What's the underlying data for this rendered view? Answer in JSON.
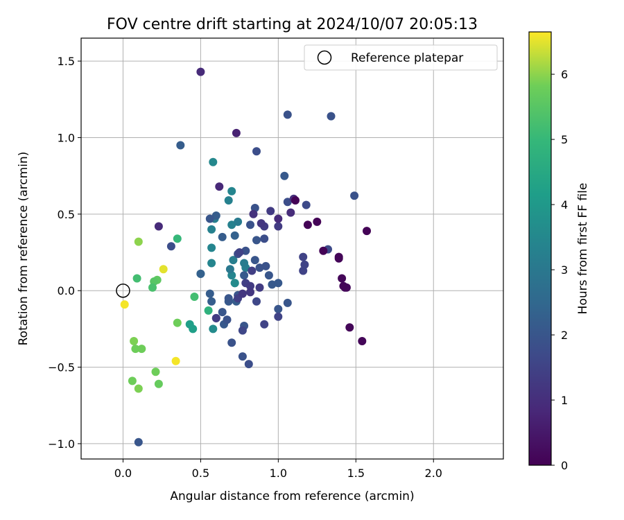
{
  "chart_data": {
    "type": "scatter",
    "title": "FOV centre drift starting at 2024/10/07 20:05:13",
    "xlabel": "Angular distance from reference (arcmin)",
    "ylabel": "Rotation from reference (arcmin)",
    "xlim": [
      -0.27,
      2.45
    ],
    "ylim": [
      -1.1,
      1.65
    ],
    "x_ticks": [
      0.0,
      0.5,
      1.0,
      1.5,
      2.0
    ],
    "x_tick_labels": [
      "0.0",
      "0.5",
      "1.0",
      "1.5",
      "2.0"
    ],
    "y_ticks": [
      -1.0,
      -0.5,
      0.0,
      0.5,
      1.0,
      1.5
    ],
    "y_tick_labels": [
      "−1.0",
      "−0.5",
      "0.0",
      "0.5",
      "1.0",
      "1.5"
    ],
    "grid": true,
    "legend": {
      "placement": "top-right",
      "entries": [
        "Reference platepar"
      ]
    },
    "reference_point": {
      "x": 0.0,
      "y": 0.0
    },
    "colorbar": {
      "label": "Hours from first FF file",
      "colormap": "viridis",
      "range": [
        0,
        6.65
      ],
      "ticks": [
        0,
        1,
        2,
        3,
        4,
        5,
        6
      ],
      "tick_labels": [
        "0",
        "1",
        "2",
        "3",
        "4",
        "5",
        "6"
      ]
    },
    "points": [
      {
        "x": 1.11,
        "y": 0.59,
        "t": 0.05
      },
      {
        "x": 1.19,
        "y": 0.43,
        "t": 0.05
      },
      {
        "x": 1.25,
        "y": 0.45,
        "t": 0.05
      },
      {
        "x": 1.29,
        "y": 0.26,
        "t": 0.05
      },
      {
        "x": 1.39,
        "y": 0.21,
        "t": 0.1
      },
      {
        "x": 1.39,
        "y": 0.22,
        "t": 0.1
      },
      {
        "x": 1.41,
        "y": 0.08,
        "t": 0.1
      },
      {
        "x": 1.42,
        "y": 0.03,
        "t": 0.1
      },
      {
        "x": 1.43,
        "y": 0.02,
        "t": 0.15
      },
      {
        "x": 1.44,
        "y": 0.02,
        "t": 0.15
      },
      {
        "x": 1.57,
        "y": 0.39,
        "t": 0.05
      },
      {
        "x": 1.46,
        "y": -0.24,
        "t": 0.1
      },
      {
        "x": 1.54,
        "y": -0.33,
        "t": 0.1
      },
      {
        "x": 0.73,
        "y": 1.03,
        "t": 0.7
      },
      {
        "x": 0.5,
        "y": 1.43,
        "t": 0.9
      },
      {
        "x": 0.62,
        "y": 0.68,
        "t": 0.85
      },
      {
        "x": 0.23,
        "y": 0.42,
        "t": 0.9
      },
      {
        "x": 1.1,
        "y": 0.6,
        "t": 1.0
      },
      {
        "x": 1.08,
        "y": 0.51,
        "t": 0.95
      },
      {
        "x": 1.0,
        "y": 0.47,
        "t": 0.9
      },
      {
        "x": 0.84,
        "y": 0.5,
        "t": 1.1
      },
      {
        "x": 0.89,
        "y": 0.44,
        "t": 1.2
      },
      {
        "x": 0.91,
        "y": 0.42,
        "t": 1.3
      },
      {
        "x": 1.0,
        "y": 0.42,
        "t": 1.3
      },
      {
        "x": 0.95,
        "y": 0.52,
        "t": 1.3
      },
      {
        "x": 0.75,
        "y": 0.25,
        "t": 1.5
      },
      {
        "x": 0.83,
        "y": 0.13,
        "t": 1.4
      },
      {
        "x": 0.79,
        "y": 0.05,
        "t": 1.4
      },
      {
        "x": 0.82,
        "y": 0.03,
        "t": 1.3
      },
      {
        "x": 0.88,
        "y": 0.02,
        "t": 1.3
      },
      {
        "x": 0.77,
        "y": -0.02,
        "t": 1.2
      },
      {
        "x": 0.74,
        "y": -0.05,
        "t": 1.4
      },
      {
        "x": 0.82,
        "y": -0.01,
        "t": 1.2
      },
      {
        "x": 0.91,
        "y": -0.22,
        "t": 1.5
      },
      {
        "x": 0.77,
        "y": -0.26,
        "t": 1.6
      },
      {
        "x": 0.86,
        "y": -0.07,
        "t": 1.6
      },
      {
        "x": 0.6,
        "y": -0.18,
        "t": 1.3
      },
      {
        "x": 1.0,
        "y": -0.17,
        "t": 1.5
      },
      {
        "x": 1.32,
        "y": 0.27,
        "t": 1.7
      },
      {
        "x": 1.16,
        "y": 0.22,
        "t": 1.5
      },
      {
        "x": 1.17,
        "y": 0.17,
        "t": 1.5
      },
      {
        "x": 1.16,
        "y": 0.13,
        "t": 1.5
      },
      {
        "x": 1.06,
        "y": 1.15,
        "t": 1.9
      },
      {
        "x": 1.34,
        "y": 1.14,
        "t": 1.9
      },
      {
        "x": 0.86,
        "y": 0.91,
        "t": 1.8
      },
      {
        "x": 0.37,
        "y": 0.95,
        "t": 2.2
      },
      {
        "x": 1.04,
        "y": 0.75,
        "t": 2.1
      },
      {
        "x": 1.49,
        "y": 0.62,
        "t": 1.9
      },
      {
        "x": 1.18,
        "y": 0.56,
        "t": 1.7
      },
      {
        "x": 1.06,
        "y": 0.58,
        "t": 1.8
      },
      {
        "x": 0.85,
        "y": 0.54,
        "t": 1.9
      },
      {
        "x": 0.6,
        "y": 0.49,
        "t": 2.2
      },
      {
        "x": 0.82,
        "y": 0.43,
        "t": 1.9
      },
      {
        "x": 0.56,
        "y": 0.47,
        "t": 2.0
      },
      {
        "x": 0.64,
        "y": 0.35,
        "t": 2.2
      },
      {
        "x": 0.72,
        "y": 0.36,
        "t": 2.3
      },
      {
        "x": 0.31,
        "y": 0.29,
        "t": 1.8
      },
      {
        "x": 0.86,
        "y": 0.33,
        "t": 2.0
      },
      {
        "x": 0.91,
        "y": 0.34,
        "t": 1.8
      },
      {
        "x": 0.74,
        "y": 0.24,
        "t": 1.8
      },
      {
        "x": 0.79,
        "y": 0.26,
        "t": 1.9
      },
      {
        "x": 0.85,
        "y": 0.2,
        "t": 2.0
      },
      {
        "x": 0.88,
        "y": 0.15,
        "t": 1.9
      },
      {
        "x": 0.92,
        "y": 0.16,
        "t": 1.9
      },
      {
        "x": 0.94,
        "y": 0.1,
        "t": 2.0
      },
      {
        "x": 0.78,
        "y": 0.1,
        "t": 2.1
      },
      {
        "x": 0.96,
        "y": 0.04,
        "t": 2.1
      },
      {
        "x": 1.0,
        "y": 0.05,
        "t": 2.1
      },
      {
        "x": 0.5,
        "y": 0.11,
        "t": 2.3
      },
      {
        "x": 0.56,
        "y": -0.02,
        "t": 2.2
      },
      {
        "x": 0.57,
        "y": -0.07,
        "t": 2.2
      },
      {
        "x": 0.68,
        "y": -0.05,
        "t": 2.0
      },
      {
        "x": 0.68,
        "y": -0.07,
        "t": 2.1
      },
      {
        "x": 0.73,
        "y": -0.07,
        "t": 2.2
      },
      {
        "x": 0.74,
        "y": -0.03,
        "t": 2.0
      },
      {
        "x": 0.64,
        "y": -0.14,
        "t": 2.0
      },
      {
        "x": 0.67,
        "y": -0.19,
        "t": 1.9
      },
      {
        "x": 0.65,
        "y": -0.22,
        "t": 2.1
      },
      {
        "x": 0.6,
        "y": -0.18,
        "t": 2.0
      },
      {
        "x": 0.78,
        "y": -0.23,
        "t": 2.0
      },
      {
        "x": 0.7,
        "y": -0.34,
        "t": 1.9
      },
      {
        "x": 0.77,
        "y": -0.43,
        "t": 1.9
      },
      {
        "x": 0.81,
        "y": -0.48,
        "t": 1.8
      },
      {
        "x": 1.0,
        "y": -0.12,
        "t": 2.0
      },
      {
        "x": 1.06,
        "y": -0.08,
        "t": 2.0
      },
      {
        "x": 0.1,
        "y": -0.99,
        "t": 2.0
      },
      {
        "x": 0.58,
        "y": 0.84,
        "t": 3.5
      },
      {
        "x": 0.7,
        "y": 0.65,
        "t": 3.4
      },
      {
        "x": 0.68,
        "y": 0.59,
        "t": 3.3
      },
      {
        "x": 0.59,
        "y": 0.47,
        "t": 3.2
      },
      {
        "x": 0.74,
        "y": 0.45,
        "t": 3.1
      },
      {
        "x": 0.7,
        "y": 0.43,
        "t": 3.3
      },
      {
        "x": 0.57,
        "y": 0.4,
        "t": 3.3
      },
      {
        "x": 0.57,
        "y": 0.28,
        "t": 3.4
      },
      {
        "x": 0.71,
        "y": 0.2,
        "t": 3.2
      },
      {
        "x": 0.57,
        "y": 0.18,
        "t": 3.4
      },
      {
        "x": 0.78,
        "y": 0.18,
        "t": 3.1
      },
      {
        "x": 0.69,
        "y": 0.14,
        "t": 3.0
      },
      {
        "x": 0.79,
        "y": 0.15,
        "t": 3.2
      },
      {
        "x": 0.7,
        "y": 0.1,
        "t": 3.4
      },
      {
        "x": 0.72,
        "y": 0.05,
        "t": 3.6
      },
      {
        "x": 0.72,
        "y": 0.05,
        "t": 3.6
      },
      {
        "x": 0.5,
        "y": 0.11,
        "t": 3.0
      },
      {
        "x": 0.58,
        "y": -0.25,
        "t": 3.6
      },
      {
        "x": 0.55,
        "y": -0.13,
        "t": 4.8
      },
      {
        "x": 0.43,
        "y": -0.22,
        "t": 4.2
      },
      {
        "x": 0.45,
        "y": -0.25,
        "t": 4.2
      },
      {
        "x": 0.46,
        "y": -0.04,
        "t": 5.2
      },
      {
        "x": 0.35,
        "y": 0.34,
        "t": 5.0
      },
      {
        "x": 0.09,
        "y": 0.08,
        "t": 5.2
      },
      {
        "x": 0.1,
        "y": 0.32,
        "t": 6.0
      },
      {
        "x": 0.2,
        "y": 0.06,
        "t": 5.5
      },
      {
        "x": 0.22,
        "y": 0.07,
        "t": 5.6
      },
      {
        "x": 0.19,
        "y": 0.02,
        "t": 5.3
      },
      {
        "x": 0.26,
        "y": 0.14,
        "t": 6.5
      },
      {
        "x": 0.35,
        "y": -0.21,
        "t": 5.8
      },
      {
        "x": 0.34,
        "y": -0.46,
        "t": 6.6
      },
      {
        "x": 0.01,
        "y": -0.09,
        "t": 6.6
      },
      {
        "x": 0.07,
        "y": -0.33,
        "t": 5.9
      },
      {
        "x": 0.08,
        "y": -0.38,
        "t": 5.8
      },
      {
        "x": 0.12,
        "y": -0.38,
        "t": 5.8
      },
      {
        "x": 0.21,
        "y": -0.53,
        "t": 5.8
      },
      {
        "x": 0.06,
        "y": -0.59,
        "t": 5.8
      },
      {
        "x": 0.1,
        "y": -0.64,
        "t": 5.9
      },
      {
        "x": 0.23,
        "y": -0.61,
        "t": 5.7
      }
    ]
  }
}
